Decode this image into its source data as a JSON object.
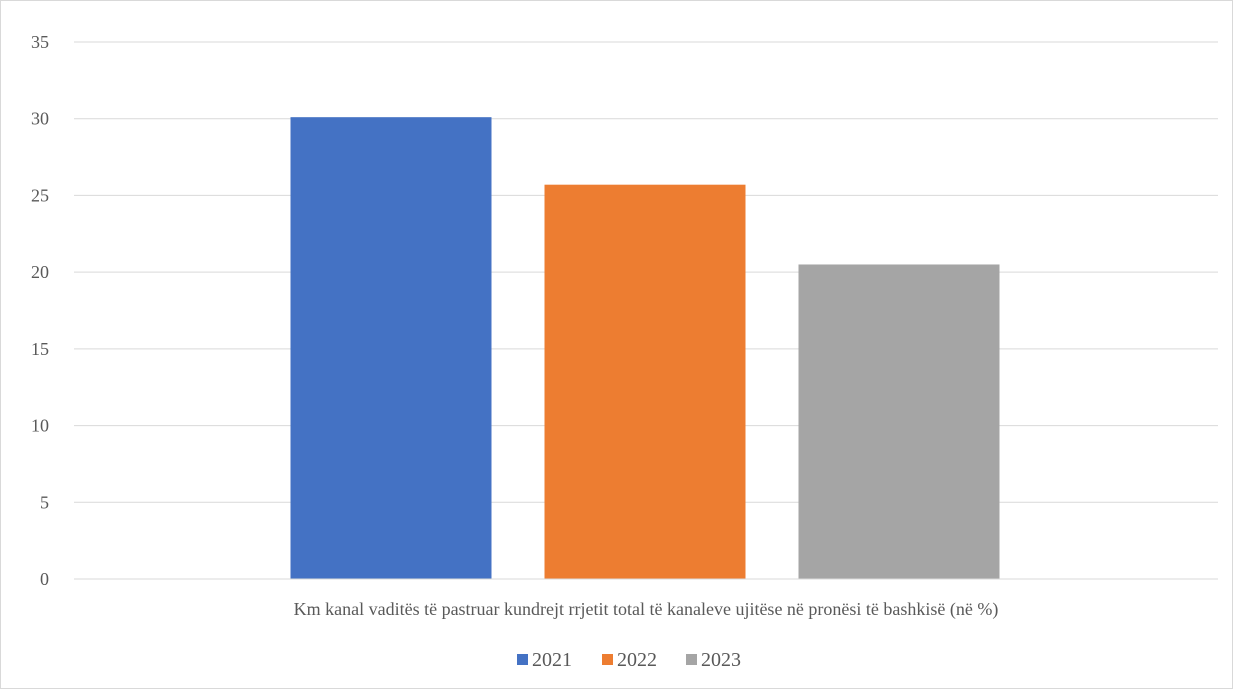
{
  "chart_data": {
    "type": "bar",
    "title": "",
    "xlabel": "",
    "ylabel": "",
    "categories": [
      "Km kanal vaditës të pastruar kundrejt rrjetit total të kanaleve ujitëse në pronësi të bashkisë (në %)"
    ],
    "series": [
      {
        "name": "2021",
        "values": [
          30.1
        ],
        "color": "#4472C4"
      },
      {
        "name": "2022",
        "values": [
          25.7
        ],
        "color": "#ED7D31"
      },
      {
        "name": "2023",
        "values": [
          20.5
        ],
        "color": "#A5A5A5"
      }
    ],
    "ylim": [
      0,
      35
    ],
    "yticks": [
      "0",
      "5",
      "10",
      "15",
      "20",
      "25",
      "30",
      "35"
    ],
    "grid": true,
    "legend_position": "bottom"
  }
}
